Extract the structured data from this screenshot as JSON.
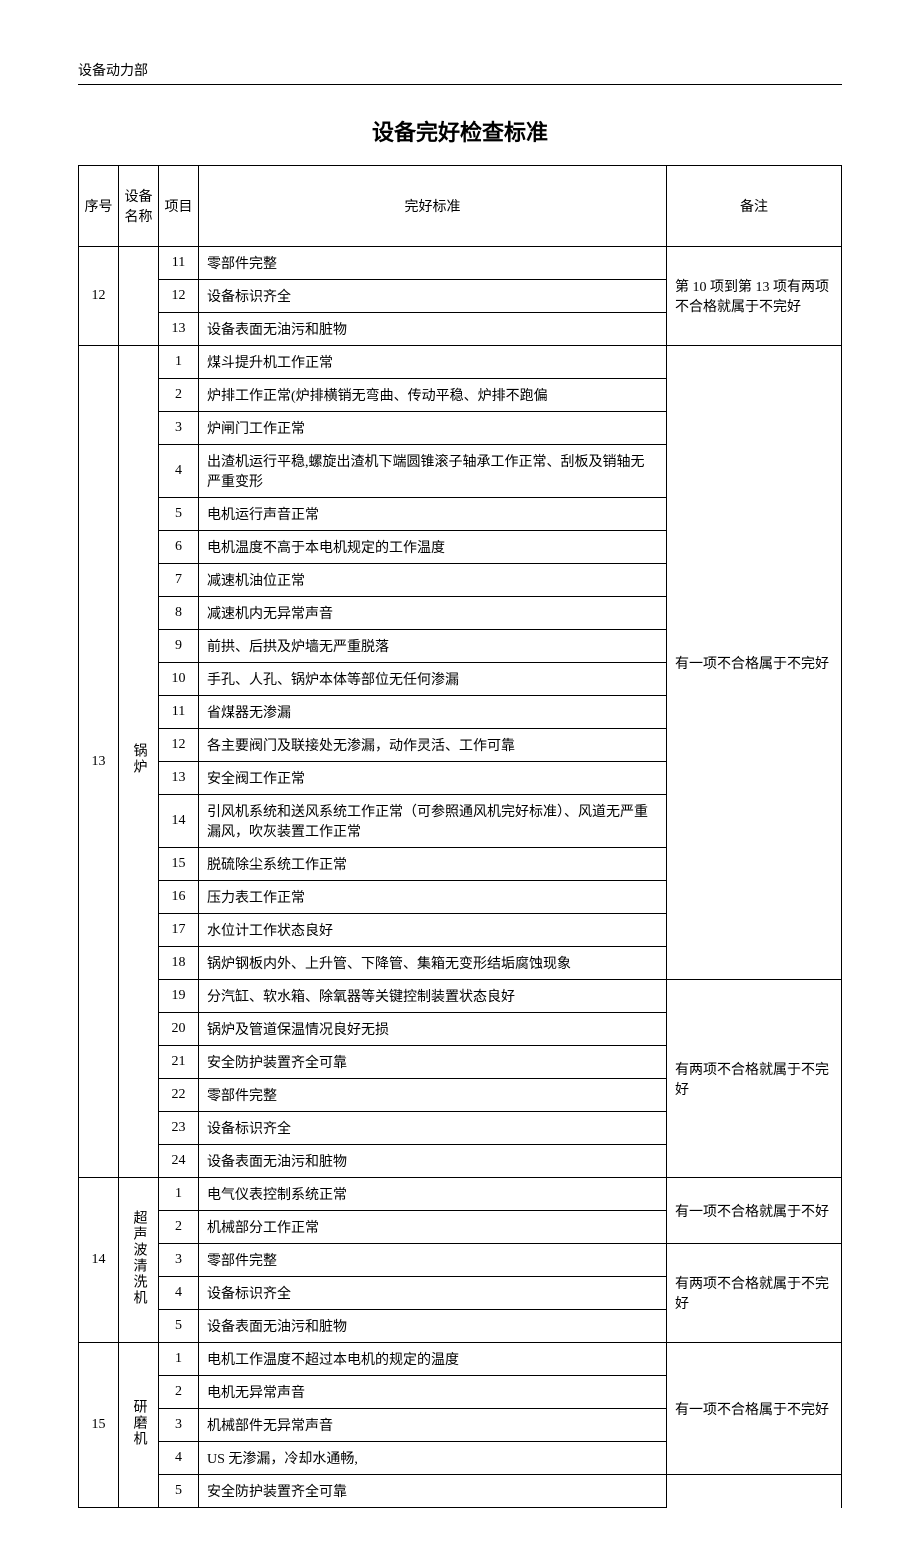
{
  "header": "设备动力部",
  "title": "设备完好检查标准",
  "columns": {
    "seq": "序号",
    "name": "设备名称",
    "item": "项目",
    "standard": "完好标准",
    "remark": "备注"
  },
  "groups": [
    {
      "seq": "12",
      "name": "",
      "rows": [
        {
          "item": "11",
          "std": "零部件完整"
        },
        {
          "item": "12",
          "std": "设备标识齐全"
        },
        {
          "item": "13",
          "std": "设备表面无油污和脏物"
        }
      ],
      "remarks": [
        {
          "span": 3,
          "text": "第 10 项到第 13 项有两项不合格就属于不完好"
        }
      ]
    },
    {
      "seq": "13",
      "name": "锅炉",
      "rows": [
        {
          "item": "1",
          "std": "煤斗提升机工作正常"
        },
        {
          "item": "2",
          "std": "炉排工作正常(炉排横销无弯曲、传动平稳、炉排不跑偏"
        },
        {
          "item": "3",
          "std": "炉闸门工作正常"
        },
        {
          "item": "4",
          "std": "出渣机运行平稳,螺旋出渣机下端圆锥滚子轴承工作正常、刮板及销轴无严重变形"
        },
        {
          "item": "5",
          "std": "电机运行声音正常"
        },
        {
          "item": "6",
          "std": "电机温度不高于本电机规定的工作温度"
        },
        {
          "item": "7",
          "std": "减速机油位正常"
        },
        {
          "item": "8",
          "std": "减速机内无异常声音"
        },
        {
          "item": "9",
          "std": "前拱、后拱及炉墙无严重脱落"
        },
        {
          "item": "10",
          "std": "手孔、人孔、锅炉本体等部位无任何渗漏"
        },
        {
          "item": "11",
          "std": "省煤器无渗漏"
        },
        {
          "item": "12",
          "std": "各主要阀门及联接处无渗漏，动作灵活、工作可靠"
        },
        {
          "item": "13",
          "std": "安全阀工作正常"
        },
        {
          "item": "14",
          "std": "引风机系统和送风系统工作正常（可参照通风机完好标准）、风道无严重漏风，吹灰装置工作正常"
        },
        {
          "item": "15",
          "std": "脱硫除尘系统工作正常"
        },
        {
          "item": "16",
          "std": "压力表工作正常"
        },
        {
          "item": "17",
          "std": "水位计工作状态良好"
        },
        {
          "item": "18",
          "std": "锅炉钢板内外、上升管、下降管、集箱无变形结垢腐蚀现象"
        },
        {
          "item": "19",
          "std": "分汽缸、软水箱、除氧器等关键控制装置状态良好"
        },
        {
          "item": "20",
          "std": "锅炉及管道保温情况良好无损"
        },
        {
          "item": "21",
          "std": "安全防护装置齐全可靠"
        },
        {
          "item": "22",
          "std": "零部件完整"
        },
        {
          "item": "23",
          "std": "设备标识齐全"
        },
        {
          "item": "24",
          "std": "设备表面无油污和脏物"
        }
      ],
      "remarks": [
        {
          "span": 18,
          "text": "有一项不合格属于不完好"
        },
        {
          "span": 6,
          "text": "有两项不合格就属于不完好"
        }
      ]
    },
    {
      "seq": "14",
      "name": "超声波清洗机",
      "rows": [
        {
          "item": "1",
          "std": "电气仪表控制系统正常"
        },
        {
          "item": "2",
          "std": "机械部分工作正常"
        },
        {
          "item": "3",
          "std": "零部件完整"
        },
        {
          "item": "4",
          "std": "设备标识齐全"
        },
        {
          "item": "5",
          "std": "设备表面无油污和脏物"
        }
      ],
      "remarks": [
        {
          "span": 2,
          "text": "有一项不合格就属于不好"
        },
        {
          "span": 3,
          "text": "有两项不合格就属于不完好"
        }
      ]
    },
    {
      "seq": "15",
      "name": "研磨机",
      "rows": [
        {
          "item": "1",
          "std": "电机工作温度不超过本电机的规定的温度"
        },
        {
          "item": "2",
          "std": "电机无异常声音"
        },
        {
          "item": "3",
          "std": "机械部件无异常声音"
        },
        {
          "item": "4",
          "std": "US 无渗漏，冷却水通畅,"
        },
        {
          "item": "5",
          "std": "安全防护装置齐全可靠"
        }
      ],
      "remarks": [
        {
          "span": 4,
          "text": "有一项不合格属于不完好"
        },
        {
          "span": 1,
          "text": ""
        }
      ],
      "lastRemarkOpen": true
    }
  ]
}
